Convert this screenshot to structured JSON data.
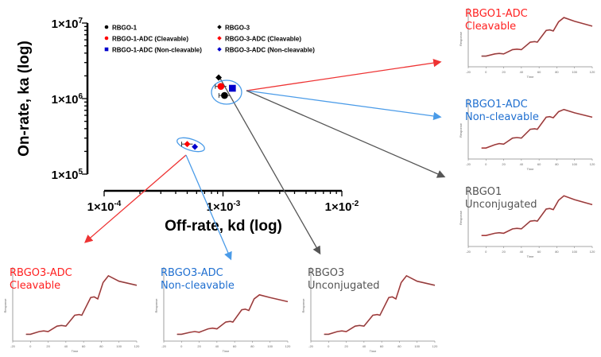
{
  "chart_data": [
    {
      "type": "scatter",
      "title": "",
      "xlabel": "Off-rate, kd (log)",
      "ylabel": "On-rate, ka (log)",
      "xscale": "log",
      "yscale": "log",
      "xlim": [
        0.0001,
        0.01
      ],
      "ylim": [
        100000,
        10000000
      ],
      "xticks": [
        {
          "value": 0.0001,
          "base": "1×10",
          "exp": "-4"
        },
        {
          "value": 0.001,
          "base": "1×10",
          "exp": "-3"
        },
        {
          "value": 0.01,
          "base": "1×10",
          "exp": "-2"
        }
      ],
      "yticks": [
        {
          "value": 10000000,
          "base": "1×10",
          "exp": "7"
        },
        {
          "value": 1000000,
          "base": "1×10",
          "exp": "6"
        },
        {
          "value": 100000,
          "base": "1×10",
          "exp": "5"
        }
      ],
      "legend_position": "top",
      "series": [
        {
          "name": "RBGO-1",
          "color": "#000000",
          "marker": "circle",
          "kd": 0.00103,
          "ka": 1100000,
          "error": true
        },
        {
          "name": "RBGO-1-ADC (Cleavable)",
          "color": "#ff0000",
          "marker": "circle",
          "kd": 0.00096,
          "ka": 1450000,
          "error": true
        },
        {
          "name": "RBGO-1-ADC (Non-cleavable)",
          "color": "#0000cc",
          "marker": "square",
          "kd": 0.0012,
          "ka": 1370000,
          "error": false
        },
        {
          "name": "RBGO-3",
          "color": "#000000",
          "marker": "diamond",
          "kd": 0.00092,
          "ka": 1900000,
          "error": false
        },
        {
          "name": "RBGO-3-ADC (Cleavable)",
          "color": "#ff0000",
          "marker": "diamond",
          "kd": 0.0005,
          "ka": 250000,
          "error": true
        },
        {
          "name": "RBGO-3-ADC (Non-cleavable)",
          "color": "#0000cc",
          "marker": "diamond",
          "kd": 0.00058,
          "ka": 230000,
          "error": false
        }
      ]
    },
    {
      "type": "line",
      "description_kind": "sensorgram insets",
      "xlabel": "Time",
      "ylabel": "Response",
      "xlim": [
        -20,
        120
      ],
      "xticks": [
        -20,
        0,
        20,
        40,
        60,
        80,
        100,
        120
      ],
      "time": [
        -5,
        0,
        10,
        15,
        20,
        30,
        35,
        40,
        50,
        55,
        58,
        68,
        72,
        76,
        82,
        88,
        100,
        120
      ],
      "panels": [
        {
          "label": "RBGO1-ADC\nCleavable",
          "color": "#ff2020",
          "response": [
            1,
            1,
            1.2,
            1.25,
            1.2,
            1.6,
            1.65,
            1.6,
            2.3,
            2.35,
            2.3,
            3.4,
            3.45,
            3.35,
            4.2,
            4.6,
            4.25,
            3.8
          ]
        },
        {
          "label": "RBGO1-ADC\nNon-cleavable",
          "color": "#1f6fd0",
          "response": [
            1,
            1,
            1.3,
            1.4,
            1.35,
            1.9,
            1.95,
            1.9,
            2.7,
            2.75,
            2.7,
            3.8,
            3.85,
            3.75,
            4.3,
            4.5,
            4.2,
            3.8
          ]
        },
        {
          "label": "RBGO1\nUnconjugated",
          "color": "#555555",
          "response": [
            1,
            1,
            1.2,
            1.25,
            1.2,
            1.6,
            1.65,
            1.6,
            2.3,
            2.35,
            2.3,
            3.4,
            3.45,
            3.35,
            4.2,
            4.6,
            4.25,
            3.8
          ]
        },
        {
          "label": "RBGO3-ADC\nCleavable",
          "color": "#ff2020",
          "response": [
            0.5,
            0.5,
            0.7,
            0.75,
            0.7,
            1.1,
            1.15,
            1.1,
            1.9,
            1.95,
            1.9,
            3.2,
            3.25,
            3.1,
            4.3,
            4.8,
            4.4,
            4.1
          ]
        },
        {
          "label": "RBGO3-ADC\nNon-cleavable",
          "color": "#1f6fd0",
          "response": [
            0.5,
            0.5,
            0.65,
            0.7,
            0.65,
            0.9,
            0.95,
            0.9,
            1.4,
            1.45,
            1.4,
            2.3,
            2.35,
            2.25,
            3.1,
            3.4,
            3.2,
            2.9
          ]
        },
        {
          "label": "RBGO3\nUnconjugated",
          "color": "#555555",
          "response": [
            0.5,
            0.5,
            0.7,
            0.75,
            0.7,
            1.1,
            1.15,
            1.1,
            1.9,
            1.95,
            1.9,
            3.2,
            3.25,
            3.1,
            4.3,
            4.8,
            4.4,
            4.1
          ]
        }
      ]
    }
  ]
}
